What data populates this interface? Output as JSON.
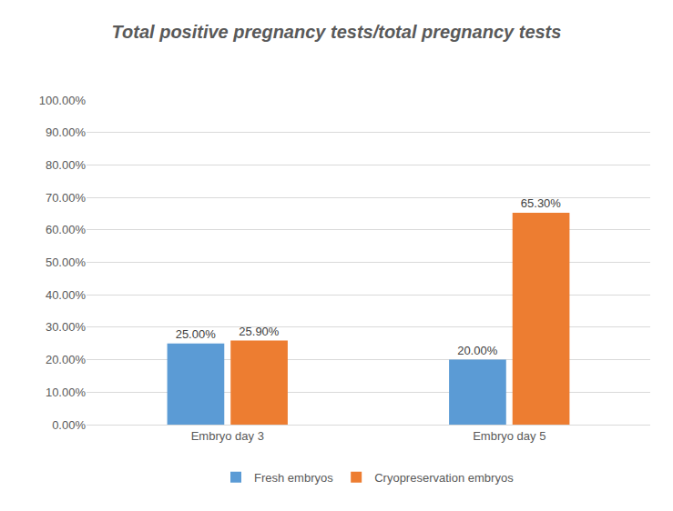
{
  "chart_data": {
    "type": "bar",
    "title": "Total positive pregnancy tests/total pregnancy tests",
    "categories": [
      "Embryo day 3",
      "Embryo day 5"
    ],
    "series": [
      {
        "name": "Fresh embryos",
        "color": "#5b9bd5",
        "values": [
          25,
          20
        ],
        "value_labels": [
          "25.00%",
          "20.00%"
        ]
      },
      {
        "name": "Cryopreservation embryos",
        "color": "#ed7d31",
        "values": [
          25.9,
          65.3
        ],
        "value_labels": [
          "25.90%",
          "65.30%"
        ]
      }
    ],
    "ylim": [
      0,
      100
    ],
    "yticks": [
      {
        "value": 0,
        "label": "0.00%"
      },
      {
        "value": 10,
        "label": "10.00%"
      },
      {
        "value": 20,
        "label": "20.00%"
      },
      {
        "value": 30,
        "label": "30.00%"
      },
      {
        "value": 40,
        "label": "40.00%"
      },
      {
        "value": 50,
        "label": "50.00%"
      },
      {
        "value": 60,
        "label": "60.00%"
      },
      {
        "value": 70,
        "label": "70.00%"
      },
      {
        "value": 80,
        "label": "80.00%"
      },
      {
        "value": 90,
        "label": "90.00%"
      },
      {
        "value": 100,
        "label": "100.00%"
      }
    ],
    "grid": true,
    "legend": "bottom",
    "data_labels": true
  }
}
